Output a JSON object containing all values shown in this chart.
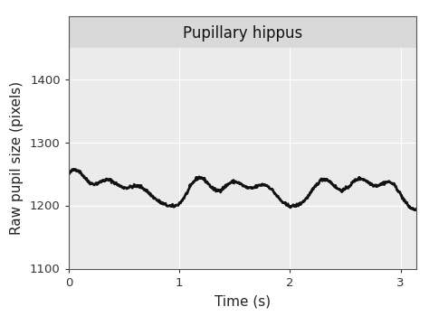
{
  "title": "Pupillary hippus",
  "xlabel": "Time (s)",
  "ylabel": "Raw pupil size (pixels)",
  "xlim": [
    0,
    3.14
  ],
  "ylim": [
    1100,
    1450
  ],
  "yticks": [
    1100,
    1200,
    1300,
    1400
  ],
  "xticks": [
    0,
    1,
    2,
    3
  ],
  "line_color": "#111111",
  "line_width": 2.0,
  "bg_plot": "#ebebeb",
  "bg_title_strip": "#d9d9d9",
  "bg_fig": "#ffffff",
  "grid_color": "#ffffff",
  "title_fontsize": 12,
  "axis_label_fontsize": 11,
  "tick_fontsize": 9.5,
  "signal_base": 1228,
  "noise_seed": 42
}
